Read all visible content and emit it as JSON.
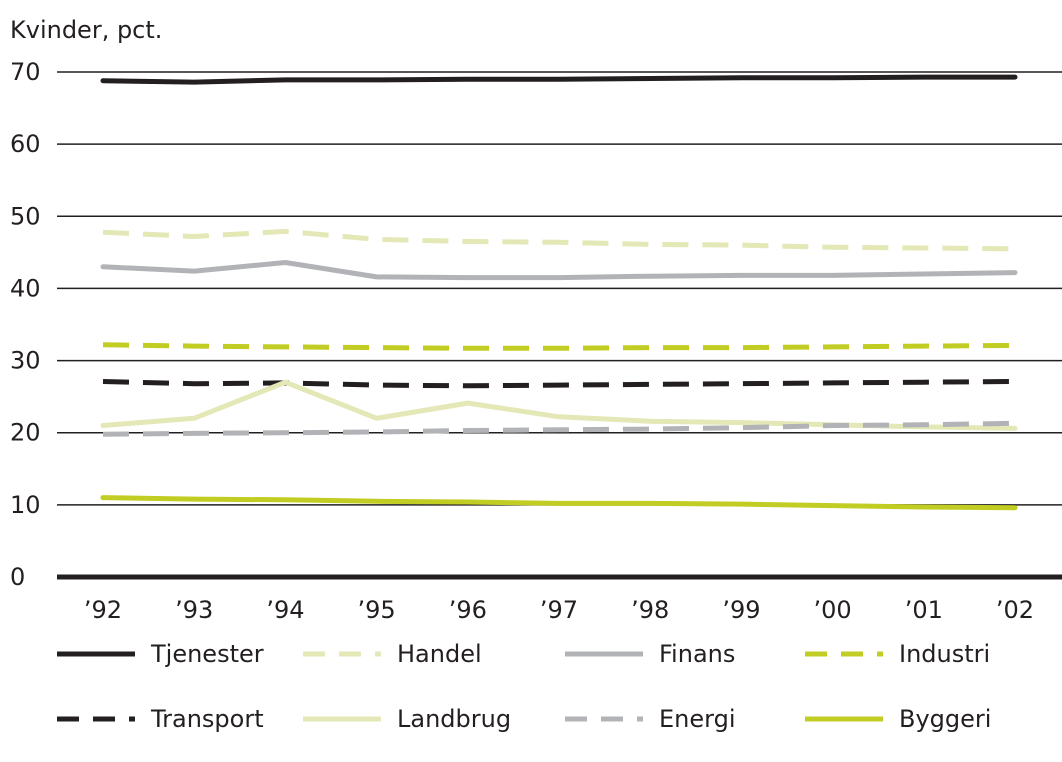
{
  "chart_data": {
    "type": "line",
    "ylabel": "Kvinder, pct.",
    "ylim": [
      0,
      70
    ],
    "yticks": [
      0,
      10,
      20,
      30,
      40,
      50,
      60,
      70
    ],
    "grid": "horizontal",
    "legend_position": "bottom",
    "categories": [
      "’92",
      "’93",
      "’94",
      "’95",
      "’96",
      "’97",
      "’98",
      "’99",
      "’00",
      "’01",
      "’02"
    ],
    "series": [
      {
        "name": "Tjenester",
        "color": "#231f20",
        "dash": "solid",
        "values": [
          68.8,
          68.6,
          68.9,
          68.9,
          69.0,
          69.0,
          69.1,
          69.2,
          69.2,
          69.3,
          69.3
        ]
      },
      {
        "name": "Handel",
        "color": "#e3e8b6",
        "dash": "dashed",
        "values": [
          47.8,
          47.2,
          47.9,
          46.8,
          46.5,
          46.4,
          46.1,
          46.0,
          45.7,
          45.6,
          45.5
        ]
      },
      {
        "name": "Finans",
        "color": "#b1b3b6",
        "dash": "solid",
        "values": [
          43.0,
          42.4,
          43.6,
          41.6,
          41.5,
          41.5,
          41.7,
          41.8,
          41.8,
          42.0,
          42.2
        ]
      },
      {
        "name": "Industri",
        "color": "#c2cd23",
        "dash": "dashed",
        "values": [
          32.2,
          32.0,
          31.9,
          31.8,
          31.7,
          31.7,
          31.8,
          31.8,
          31.9,
          32.0,
          32.1
        ]
      },
      {
        "name": "Transport",
        "color": "#231f20",
        "dash": "dashed",
        "values": [
          27.1,
          26.8,
          26.9,
          26.6,
          26.5,
          26.6,
          26.7,
          26.8,
          26.9,
          27.0,
          27.1
        ]
      },
      {
        "name": "Landbrug",
        "color": "#e3e8b6",
        "dash": "solid",
        "values": [
          21.0,
          22.0,
          27.0,
          22.0,
          24.1,
          22.2,
          21.6,
          21.4,
          21.1,
          20.8,
          20.6
        ]
      },
      {
        "name": "Energi",
        "color": "#b1b3b6",
        "dash": "dashed",
        "values": [
          19.8,
          19.9,
          20.0,
          20.1,
          20.3,
          20.4,
          20.5,
          20.7,
          21.0,
          21.1,
          21.3
        ]
      },
      {
        "name": "Byggeri",
        "color": "#c2cd23",
        "dash": "solid",
        "values": [
          11.0,
          10.8,
          10.7,
          10.5,
          10.4,
          10.2,
          10.2,
          10.1,
          9.9,
          9.7,
          9.6
        ]
      }
    ]
  }
}
